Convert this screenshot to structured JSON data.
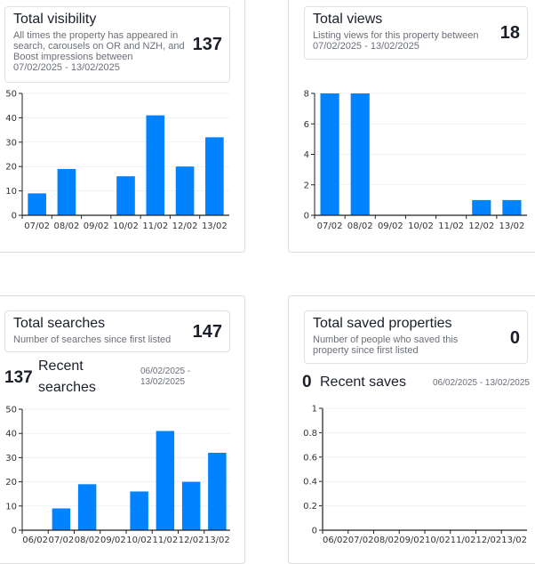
{
  "colors": {
    "bar": "#0183ff",
    "grid": "#eef1f7",
    "axis": "#222222"
  },
  "cards": {
    "visibility": {
      "title": "Total visibility",
      "description_lines": [
        "All times the property has appeared in",
        "search, carousels on OR and NZH, and",
        "Boost impressions between",
        "07/02/2025 - 13/02/2025"
      ],
      "total": "137"
    },
    "views": {
      "title": "Total views",
      "description_lines": [
        "Listing views for this property between",
        "07/02/2025 - 13/02/2025"
      ],
      "total": "18"
    },
    "searches": {
      "title": "Total searches",
      "description_lines": [
        "Number of searches since first listed"
      ],
      "total": "147",
      "recent_count": "137",
      "recent_label_lines": [
        "Recent",
        "searches"
      ],
      "recent_range_lines": [
        "06/02/2025 -",
        "13/02/2025"
      ]
    },
    "saves": {
      "title": "Total saved properties",
      "description_lines": [
        "Number of people who saved this",
        "property since first listed"
      ],
      "total": "0",
      "recent_count": "0",
      "recent_label": "Recent saves",
      "recent_range": "06/02/2025 - 13/02/2025"
    }
  },
  "chart_data": [
    {
      "id": "visibility",
      "type": "bar",
      "title": "",
      "categories": [
        "07/02",
        "08/02",
        "09/02",
        "10/02",
        "11/02",
        "12/02",
        "13/02"
      ],
      "values": [
        9,
        19,
        0,
        16,
        41,
        20,
        32
      ],
      "yticks": [
        0,
        10,
        20,
        30,
        40,
        50
      ],
      "ylim": [
        0,
        50
      ],
      "grid": true,
      "xlabel": "",
      "ylabel": ""
    },
    {
      "id": "views",
      "type": "bar",
      "title": "",
      "categories": [
        "07/02",
        "08/02",
        "09/02",
        "10/02",
        "11/02",
        "12/02",
        "13/02"
      ],
      "values": [
        8,
        8,
        0,
        0,
        0,
        1,
        1
      ],
      "yticks": [
        0,
        2,
        4,
        6,
        8
      ],
      "ylim": [
        0,
        8
      ],
      "grid": true,
      "xlabel": "",
      "ylabel": ""
    },
    {
      "id": "searches",
      "type": "bar",
      "title": "",
      "categories": [
        "06/02",
        "07/02",
        "08/02",
        "09/02",
        "10/02",
        "11/02",
        "12/02",
        "13/02"
      ],
      "values": [
        0,
        9,
        19,
        0,
        16,
        41,
        20,
        32
      ],
      "yticks": [
        0,
        10,
        20,
        30,
        40,
        50
      ],
      "ylim": [
        0,
        50
      ],
      "grid": true,
      "xlabel": "",
      "ylabel": ""
    },
    {
      "id": "saves",
      "type": "bar",
      "title": "",
      "categories": [
        "06/02",
        "07/02",
        "08/02",
        "09/02",
        "10/02",
        "11/02",
        "12/02",
        "13/02"
      ],
      "values": [
        0,
        0,
        0,
        0,
        0,
        0,
        0,
        0
      ],
      "yticks": [
        0,
        0.2,
        0.4,
        0.6,
        0.8,
        1
      ],
      "ylim": [
        0,
        1
      ],
      "grid": true,
      "xlabel": "",
      "ylabel": ""
    }
  ]
}
